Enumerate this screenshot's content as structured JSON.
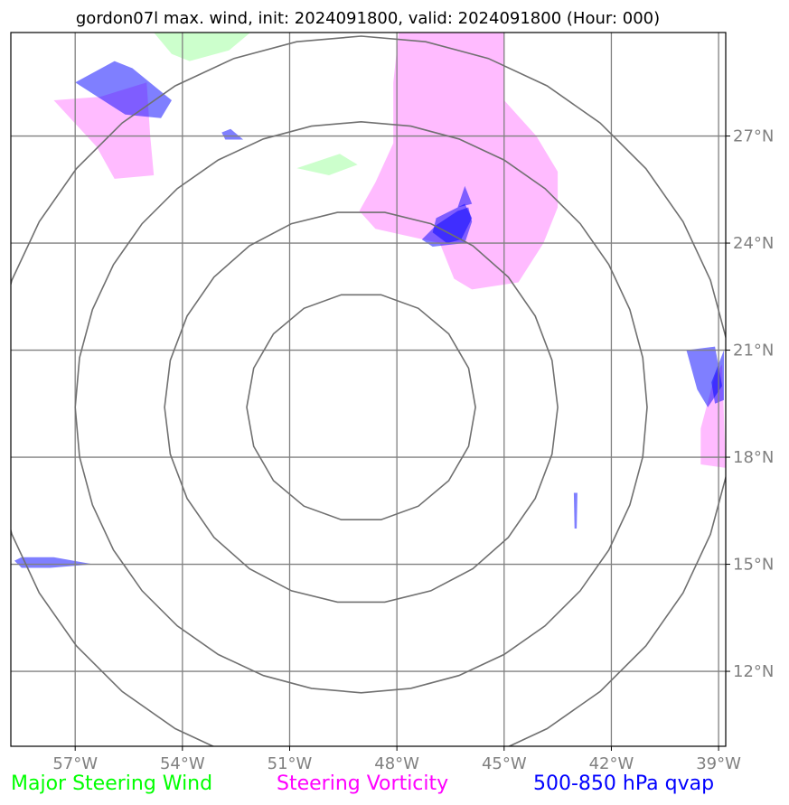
{
  "chart_data": {
    "type": "map",
    "title": "gordon07l max. wind, init: 2024091800, valid: 2024091800 (Hour: 000)",
    "x_ticks": [
      "57°W",
      "54°W",
      "51°W",
      "48°W",
      "45°W",
      "42°W",
      "39°W"
    ],
    "y_ticks": [
      "27°N",
      "24°N",
      "21°N",
      "18°N",
      "15°N",
      "12°N"
    ],
    "lon_values": [
      -57,
      -54,
      -51,
      -48,
      -45,
      -42,
      -39
    ],
    "lat_values": [
      27,
      24,
      21,
      18,
      15,
      12
    ],
    "xlim": [
      -58.8,
      -38.8
    ],
    "ylim": [
      9.9,
      29.9
    ],
    "rings": {
      "center": [
        -49.0,
        19.4
      ],
      "radius_deg": [
        3.2,
        5.5,
        8.0,
        10.4
      ]
    },
    "legend": [
      {
        "label": "Major Steering Wind",
        "color": "#00ff00"
      },
      {
        "label": "Steering Vorticity",
        "color": "#ff00ff"
      },
      {
        "label": "500-850 hPa qvap",
        "color": "#0000ff"
      }
    ],
    "layers": {
      "wind": {
        "color": "#ccffcc",
        "polygons": [
          [
            [
              -54.8,
              29.9
            ],
            [
              -52.1,
              29.9
            ],
            [
              -52.7,
              29.4
            ],
            [
              -53.8,
              29.1
            ],
            [
              -54.3,
              29.3
            ]
          ],
          [
            [
              -50.8,
              26.1
            ],
            [
              -49.6,
              26.5
            ],
            [
              -49.1,
              26.2
            ],
            [
              -49.9,
              25.9
            ]
          ]
        ]
      },
      "vorticity": {
        "color": "#ffbbff",
        "polygons": [
          [
            [
              -47.95,
              29.9
            ],
            [
              -45.0,
              29.9
            ],
            [
              -45.0,
              28.0
            ],
            [
              -44.1,
              27.0
            ],
            [
              -43.5,
              26.0
            ],
            [
              -43.5,
              25.0
            ],
            [
              -43.9,
              24.0
            ],
            [
              -44.6,
              22.9
            ],
            [
              -45.9,
              22.7
            ],
            [
              -46.4,
              23.0
            ],
            [
              -46.8,
              24.0
            ],
            [
              -48.6,
              24.4
            ],
            [
              -49.05,
              24.9
            ],
            [
              -48.6,
              25.7
            ],
            [
              -48.1,
              26.8
            ],
            [
              -48.1,
              28.5
            ]
          ],
          [
            [
              -56.3,
              28.1
            ],
            [
              -55.0,
              28.5
            ],
            [
              -54.9,
              27.0
            ],
            [
              -54.8,
              25.9
            ],
            [
              -55.9,
              25.8
            ],
            [
              -56.4,
              26.7
            ],
            [
              -57.6,
              28.0
            ]
          ],
          [
            [
              -39.1,
              20.3
            ],
            [
              -38.9,
              20.6
            ],
            [
              -38.8,
              17.7
            ],
            [
              -39.5,
              17.8
            ],
            [
              -39.5,
              18.8
            ]
          ]
        ]
      },
      "qvap": {
        "color": "#0000ff",
        "opacity": 0.5,
        "polygons": [
          [
            [
              -57.0,
              28.5
            ],
            [
              -55.9,
              29.1
            ],
            [
              -55.4,
              28.9
            ],
            [
              -54.3,
              28.0
            ],
            [
              -54.6,
              27.5
            ],
            [
              -55.6,
              27.6
            ]
          ],
          [
            [
              -52.65,
              27.2
            ],
            [
              -52.3,
              26.9
            ],
            [
              -52.8,
              26.9
            ],
            [
              -52.9,
              27.1
            ]
          ],
          [
            [
              -46.3,
              24.9
            ],
            [
              -46.0,
              25.0
            ],
            [
              -45.9,
              24.6
            ],
            [
              -46.1,
              24.0
            ],
            [
              -47.0,
              23.9
            ],
            [
              -47.3,
              24.1
            ],
            [
              -46.9,
              24.5
            ]
          ],
          [
            [
              -46.1,
              25.6
            ],
            [
              -45.9,
              25.1
            ],
            [
              -46.3,
              25.0
            ]
          ],
          [
            [
              -46.9,
              24.7
            ],
            [
              -46.1,
              25.1
            ],
            [
              -45.9,
              24.7
            ],
            [
              -46.2,
              24.1
            ],
            [
              -46.6,
              24.0
            ],
            [
              -47.0,
              24.3
            ]
          ],
          [
            [
              -39.9,
              21.0
            ],
            [
              -39.1,
              21.1
            ],
            [
              -38.9,
              20.0
            ],
            [
              -39.3,
              19.4
            ],
            [
              -39.6,
              19.9
            ]
          ],
          [
            [
              -39.2,
              20.1
            ],
            [
              -38.85,
              21.0
            ],
            [
              -38.85,
              19.6
            ],
            [
              -39.1,
              19.5
            ]
          ],
          [
            [
              -43.05,
              17.0
            ],
            [
              -42.95,
              17.0
            ],
            [
              -42.97,
              16.0
            ],
            [
              -43.03,
              16.0
            ]
          ],
          [
            [
              -58.7,
              15.1
            ],
            [
              -58.5,
              15.2
            ],
            [
              -57.6,
              15.2
            ],
            [
              -56.5,
              15.0
            ],
            [
              -57.7,
              14.9
            ],
            [
              -58.5,
              14.9
            ]
          ]
        ]
      }
    }
  }
}
